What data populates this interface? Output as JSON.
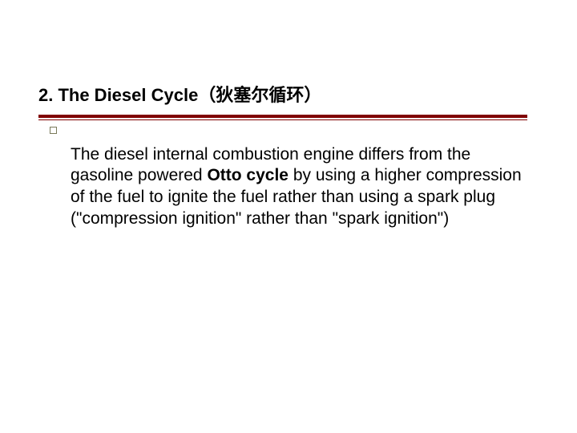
{
  "slide": {
    "title": "2. The Diesel Cycle（狄塞尔循环）",
    "title_color": "#000000",
    "title_fontsize": 22,
    "rule_color": "#800000",
    "body": {
      "pre": "The diesel internal combustion engine differs from the gasoline powered ",
      "bold": "Otto cycle",
      "post": " by using a higher compression of the fuel to ignite the fuel rather than using a spark plug (\"compression ignition\" rather than \"spark ignition\")",
      "fontsize": 21,
      "text_color": "#000000"
    },
    "bullet_border_color": "#7a7a5a",
    "background_color": "#ffffff"
  }
}
